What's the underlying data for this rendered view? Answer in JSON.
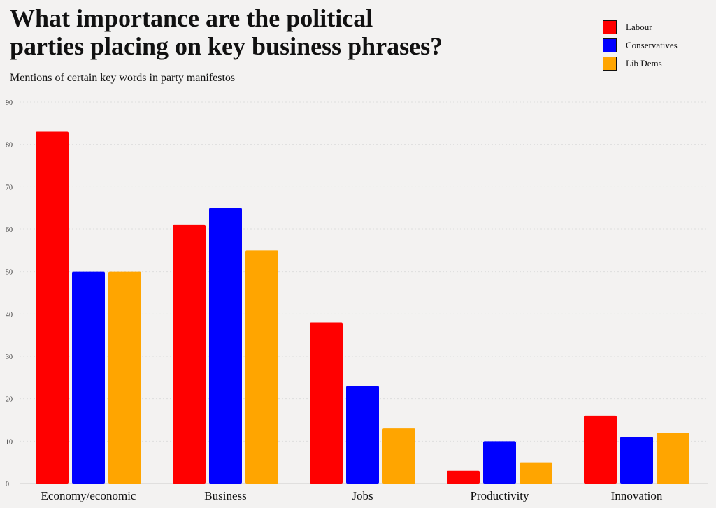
{
  "chart_data": {
    "type": "bar",
    "title": "What importance are the political parties placing on key business phrases?",
    "subtitle": "Mentions of certain key words in party manifestos",
    "xlabel": "",
    "ylabel": "",
    "categories": [
      "Economy/economic",
      "Business",
      "Jobs",
      "Productivity",
      "Innovation"
    ],
    "series": [
      {
        "name": "Labour",
        "color": "#ff0000",
        "values": [
          83,
          61,
          38,
          3,
          16
        ]
      },
      {
        "name": "Conservatives",
        "color": "#0000ff",
        "values": [
          50,
          65,
          23,
          10,
          11
        ]
      },
      {
        "name": "Lib Dems",
        "color": "#ffa500",
        "values": [
          50,
          55,
          13,
          5,
          12
        ]
      }
    ],
    "ylim": [
      0,
      90
    ],
    "yticks": [
      0,
      10,
      20,
      30,
      40,
      50,
      60,
      70,
      80,
      90
    ],
    "grid": true,
    "legend_position": "top-right"
  }
}
